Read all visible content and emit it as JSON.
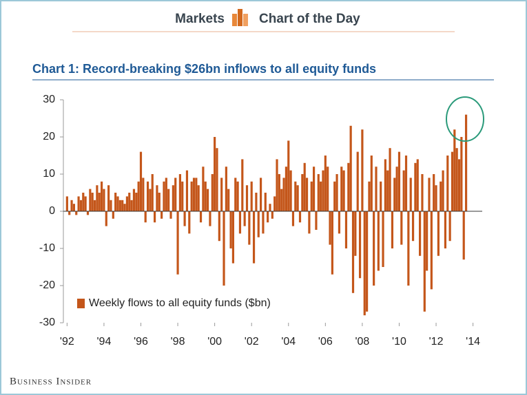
{
  "header": {
    "section": "Markets",
    "title": "Chart of the Day"
  },
  "footer": "Business Insider",
  "chart_data": {
    "type": "bar",
    "title": "Chart 1: Record-breaking $26bn inflows to all equity funds",
    "x": [
      1992,
      1992.125,
      1992.25,
      1992.375,
      1992.5,
      1992.625,
      1992.75,
      1992.875,
      1993,
      1993.125,
      1993.25,
      1993.375,
      1993.5,
      1993.625,
      1993.75,
      1993.875,
      1994,
      1994.125,
      1994.25,
      1994.375,
      1994.5,
      1994.625,
      1994.75,
      1994.875,
      1995,
      1995.125,
      1995.25,
      1995.375,
      1995.5,
      1995.625,
      1995.75,
      1995.875,
      1996,
      1996.125,
      1996.25,
      1996.375,
      1996.5,
      1996.625,
      1996.75,
      1996.875,
      1997,
      1997.125,
      1997.25,
      1997.375,
      1997.5,
      1997.625,
      1997.75,
      1997.875,
      1998,
      1998.125,
      1998.25,
      1998.375,
      1998.5,
      1998.625,
      1998.75,
      1998.875,
      1999,
      1999.125,
      1999.25,
      1999.375,
      1999.5,
      1999.625,
      1999.75,
      1999.875,
      2000,
      2000.125,
      2000.25,
      2000.375,
      2000.5,
      2000.625,
      2000.75,
      2000.875,
      2001,
      2001.125,
      2001.25,
      2001.375,
      2001.5,
      2001.625,
      2001.75,
      2001.875,
      2002,
      2002.125,
      2002.25,
      2002.375,
      2002.5,
      2002.625,
      2002.75,
      2002.875,
      2003,
      2003.125,
      2003.25,
      2003.375,
      2003.5,
      2003.625,
      2003.75,
      2003.875,
      2004,
      2004.125,
      2004.25,
      2004.375,
      2004.5,
      2004.625,
      2004.75,
      2004.875,
      2005,
      2005.125,
      2005.25,
      2005.375,
      2005.5,
      2005.625,
      2005.75,
      2005.875,
      2006,
      2006.125,
      2006.25,
      2006.375,
      2006.5,
      2006.625,
      2006.75,
      2006.875,
      2007,
      2007.125,
      2007.25,
      2007.375,
      2007.5,
      2007.625,
      2007.75,
      2007.875,
      2008,
      2008.125,
      2008.25,
      2008.375,
      2008.5,
      2008.625,
      2008.75,
      2008.875,
      2009,
      2009.125,
      2009.25,
      2009.375,
      2009.5,
      2009.625,
      2009.75,
      2009.875,
      2010,
      2010.125,
      2010.25,
      2010.375,
      2010.5,
      2010.625,
      2010.75,
      2010.875,
      2011,
      2011.125,
      2011.25,
      2011.375,
      2011.5,
      2011.625,
      2011.75,
      2011.875,
      2012,
      2012.125,
      2012.25,
      2012.375,
      2012.5,
      2012.625,
      2012.75,
      2012.875,
      2013,
      2013.125,
      2013.25,
      2013.375,
      2013.5,
      2013.625
    ],
    "series": [
      {
        "name": "Weekly flows to all equity funds ($bn)",
        "color": "#c4561a",
        "values": [
          4,
          -1,
          3,
          2,
          -1,
          4,
          3,
          5,
          4,
          -1,
          6,
          5,
          3,
          7,
          5,
          8,
          6,
          -4,
          7,
          3,
          -2,
          5,
          4,
          3,
          3,
          2,
          4,
          5,
          3,
          6,
          5,
          8,
          16,
          9,
          -3,
          8,
          6,
          10,
          -3,
          7,
          5,
          -2,
          8,
          9,
          6,
          -2,
          7,
          9,
          -17,
          10,
          8,
          -4,
          11,
          -6,
          8,
          9,
          9,
          7,
          -3,
          12,
          8,
          6,
          -4,
          10,
          20,
          17,
          -8,
          9,
          -20,
          12,
          6,
          -10,
          -14,
          9,
          8,
          -6,
          14,
          -4,
          7,
          -9,
          8,
          -14,
          5,
          -7,
          9,
          -6,
          5,
          -3,
          2,
          -2,
          4,
          14,
          10,
          6,
          9,
          12,
          19,
          11,
          -4,
          8,
          7,
          -3,
          10,
          13,
          9,
          -6,
          8,
          12,
          -5,
          10,
          8,
          11,
          15,
          12,
          -9,
          -17,
          8,
          10,
          -6,
          12,
          11,
          -10,
          13,
          23,
          -22,
          -12,
          16,
          -18,
          22,
          -28,
          -27,
          8,
          15,
          -20,
          12,
          -16,
          8,
          -15,
          14,
          11,
          17,
          -10,
          9,
          12,
          16,
          -9,
          11,
          15,
          -20,
          9,
          -8,
          13,
          14,
          -12,
          10,
          -27,
          -16,
          9,
          -21,
          10,
          7,
          -12,
          8,
          11,
          -10,
          15,
          -8,
          16,
          22,
          17,
          14,
          20,
          -13,
          26
        ]
      }
    ],
    "xlim": [
      1991.8,
      2014.5
    ],
    "xticks": [
      {
        "value": 1992,
        "label": "'92"
      },
      {
        "value": 1994,
        "label": "'94"
      },
      {
        "value": 1996,
        "label": "'96"
      },
      {
        "value": 1998,
        "label": "'98"
      },
      {
        "value": 2000,
        "label": "'00"
      },
      {
        "value": 2002,
        "label": "'02"
      },
      {
        "value": 2004,
        "label": "'04"
      },
      {
        "value": 2006,
        "label": "'06"
      },
      {
        "value": 2008,
        "label": "'08"
      },
      {
        "value": 2010,
        "label": "'10"
      },
      {
        "value": 2012,
        "label": "'12"
      },
      {
        "value": 2014,
        "label": "'14"
      }
    ],
    "ylim": [
      -30,
      30
    ],
    "yticks": [
      -30,
      -20,
      -10,
      0,
      10,
      20,
      30
    ],
    "grid": false
  }
}
